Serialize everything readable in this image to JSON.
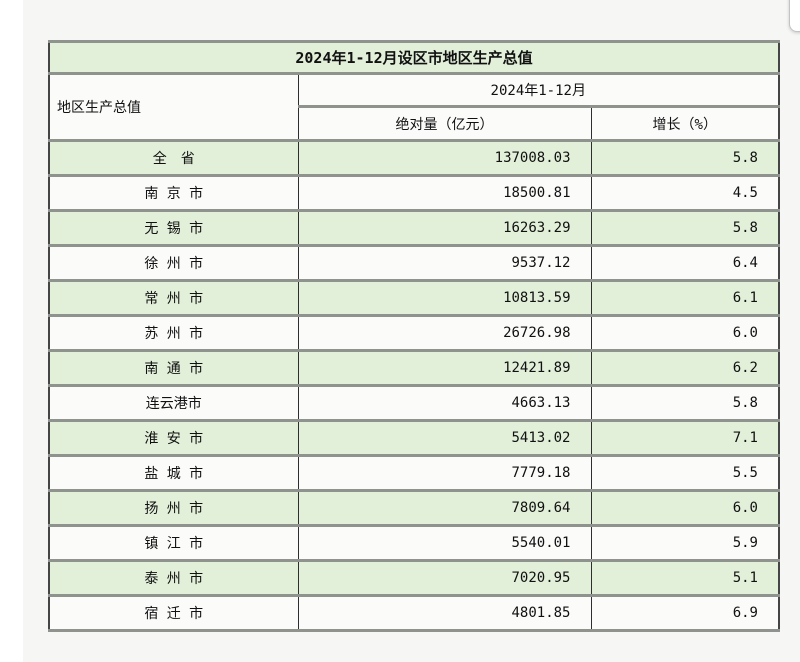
{
  "page": {
    "background_color": "#f6f6f5",
    "row_green_color": "#e2efd9",
    "corner_widget": "scroll-corner-widget"
  },
  "table": {
    "title": "2024年1-12月设区市地区生产总值",
    "header": {
      "col_region": "地区生产总值",
      "period": "2024年1-12月",
      "col_absolute": "绝对量（亿元）",
      "col_growth": "增长（%）"
    },
    "rows": [
      {
        "name": "全　省",
        "absolute": "137008.03",
        "growth": "5.8"
      },
      {
        "name": "南 京 市",
        "absolute": "18500.81",
        "growth": "4.5"
      },
      {
        "name": "无 锡 市",
        "absolute": "16263.29",
        "growth": "5.8"
      },
      {
        "name": "徐 州 市",
        "absolute": "9537.12",
        "growth": "6.4"
      },
      {
        "name": "常 州 市",
        "absolute": "10813.59",
        "growth": "6.1"
      },
      {
        "name": "苏 州 市",
        "absolute": "26726.98",
        "growth": "6.0"
      },
      {
        "name": "南 通 市",
        "absolute": "12421.89",
        "growth": "6.2"
      },
      {
        "name": "连云港市",
        "absolute": "4663.13",
        "growth": "5.8"
      },
      {
        "name": "淮 安 市",
        "absolute": "5413.02",
        "growth": "7.1"
      },
      {
        "name": "盐 城 市",
        "absolute": "7779.18",
        "growth": "5.5"
      },
      {
        "name": "扬 州 市",
        "absolute": "7809.64",
        "growth": "6.0"
      },
      {
        "name": "镇 江 市",
        "absolute": "5540.01",
        "growth": "5.9"
      },
      {
        "name": "泰 州 市",
        "absolute": "7020.95",
        "growth": "5.1"
      },
      {
        "name": "宿 迁 市",
        "absolute": "4801.85",
        "growth": "6.9"
      }
    ]
  },
  "chart_data": {
    "type": "table",
    "title": "2024年1-12月设区市地区生产总值",
    "columns": [
      "地区生产总值",
      "绝对量（亿元）",
      "增长（%）"
    ],
    "categories": [
      "全省",
      "南京市",
      "无锡市",
      "徐州市",
      "常州市",
      "苏州市",
      "南通市",
      "连云港市",
      "淮安市",
      "盐城市",
      "扬州市",
      "镇江市",
      "泰州市",
      "宿迁市"
    ],
    "series": [
      {
        "name": "绝对量（亿元）",
        "values": [
          137008.03,
          18500.81,
          16263.29,
          9537.12,
          10813.59,
          26726.98,
          12421.89,
          4663.13,
          5413.02,
          7779.18,
          7809.64,
          5540.01,
          7020.95,
          4801.85
        ]
      },
      {
        "name": "增长（%）",
        "values": [
          5.8,
          4.5,
          5.8,
          6.4,
          6.1,
          6.0,
          6.2,
          5.8,
          7.1,
          5.5,
          6.0,
          5.9,
          5.1,
          6.9
        ]
      }
    ]
  }
}
